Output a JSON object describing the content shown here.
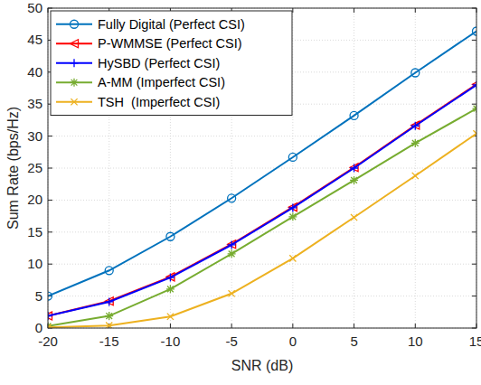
{
  "chart_data": {
    "type": "line",
    "x_label": "SNR (dB)",
    "y_label": "Sum Rate (bps/Hz)",
    "x": [
      -20,
      -15,
      -10,
      -5,
      0,
      5,
      10,
      15
    ],
    "series": [
      {
        "name": "Fully Digital (Perfect CSI)",
        "color": "#0072bd",
        "marker": "circle",
        "line_style": "solid",
        "values": [
          5.0,
          9.0,
          14.3,
          20.3,
          26.7,
          33.2,
          39.9,
          46.4
        ]
      },
      {
        "name": "P-WMMSE (Perfect CSI)",
        "color": "#ff0000",
        "marker": "triangle-left",
        "line_style": "solid",
        "values": [
          1.9,
          4.2,
          8.0,
          13.1,
          18.9,
          25.1,
          31.7,
          38.1
        ]
      },
      {
        "name": "HySBD (Perfect CSI)",
        "color": "#0000ff",
        "marker": "plus",
        "line_style": "solid",
        "values": [
          1.9,
          4.1,
          7.9,
          13.0,
          18.8,
          25.0,
          31.6,
          38.0
        ]
      },
      {
        "name": "A-MM (Imperfect CSI)",
        "color": "#77ac30",
        "marker": "asterisk",
        "line_style": "solid",
        "values": [
          0.3,
          1.9,
          6.1,
          11.6,
          17.4,
          23.1,
          28.9,
          34.3
        ]
      },
      {
        "name": "TSH  (Imperfect CSI)",
        "color": "#edb120",
        "marker": "x",
        "line_style": "solid",
        "values": [
          0.1,
          0.4,
          1.8,
          5.4,
          10.9,
          17.3,
          23.8,
          30.4
        ]
      }
    ],
    "xlim": [
      -20,
      15
    ],
    "xticks": [
      -20,
      -15,
      -10,
      -5,
      0,
      5,
      10,
      15
    ],
    "ylim": [
      0,
      50
    ],
    "yticks": [
      0,
      5,
      10,
      15,
      20,
      25,
      30,
      35,
      40,
      45,
      50
    ],
    "grid": true,
    "legend": "upper-left"
  }
}
